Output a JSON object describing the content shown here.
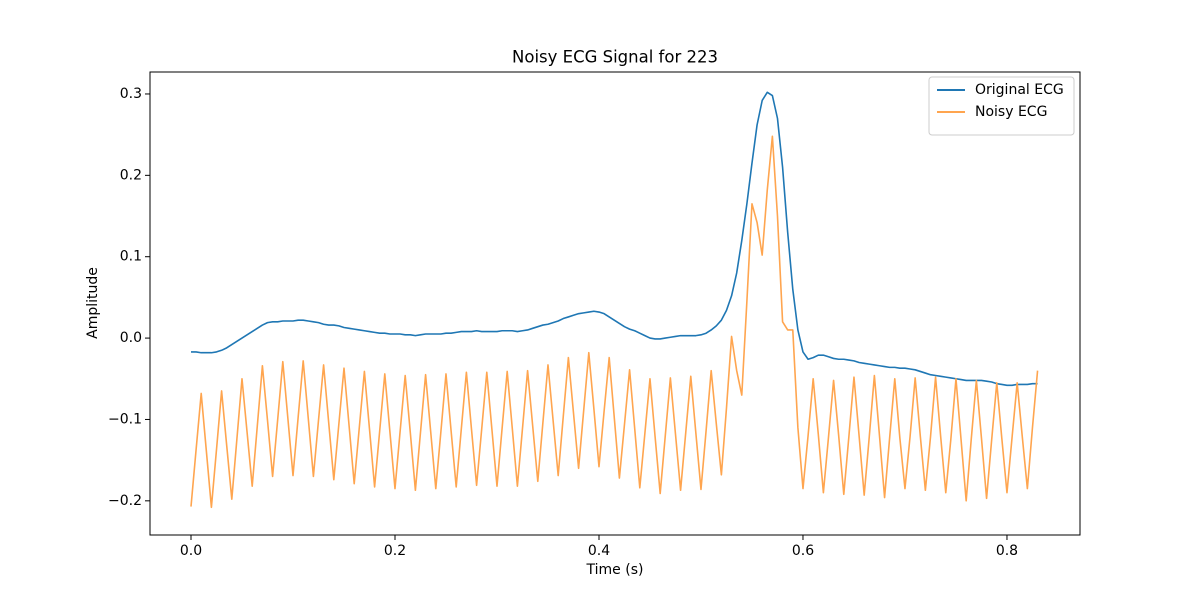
{
  "chart_data": {
    "type": "line",
    "title": "Noisy ECG Signal for 223",
    "x_label": "Time (s)",
    "y_label": "Amplitude",
    "x": [
      0,
      0.005,
      0.01,
      0.015,
      0.02,
      0.025,
      0.03,
      0.035,
      0.04,
      0.045,
      0.05,
      0.055,
      0.06,
      0.065,
      0.07,
      0.075,
      0.08,
      0.085,
      0.09,
      0.095,
      0.1,
      0.105,
      0.11,
      0.115,
      0.12,
      0.125,
      0.13,
      0.135,
      0.14,
      0.145,
      0.15,
      0.155,
      0.16,
      0.165,
      0.17,
      0.175,
      0.18,
      0.185,
      0.19,
      0.195,
      0.2,
      0.205,
      0.21,
      0.215,
      0.22,
      0.225,
      0.23,
      0.235,
      0.24,
      0.245,
      0.25,
      0.255,
      0.26,
      0.265,
      0.27,
      0.275,
      0.28,
      0.285,
      0.29,
      0.295,
      0.3,
      0.305,
      0.31,
      0.315,
      0.32,
      0.325,
      0.33,
      0.335,
      0.34,
      0.345,
      0.35,
      0.355,
      0.36,
      0.365,
      0.37,
      0.375,
      0.38,
      0.385,
      0.39,
      0.395,
      0.4,
      0.405,
      0.41,
      0.415,
      0.42,
      0.425,
      0.43,
      0.435,
      0.44,
      0.445,
      0.45,
      0.455,
      0.46,
      0.465,
      0.47,
      0.475,
      0.48,
      0.485,
      0.49,
      0.495,
      0.5,
      0.505,
      0.51,
      0.515,
      0.52,
      0.525,
      0.53,
      0.535,
      0.54,
      0.545,
      0.55,
      0.555,
      0.56,
      0.565,
      0.57,
      0.575,
      0.58,
      0.585,
      0.59,
      0.595,
      0.6,
      0.605,
      0.61,
      0.615,
      0.62,
      0.625,
      0.63,
      0.635,
      0.64,
      0.645,
      0.65,
      0.655,
      0.66,
      0.665,
      0.67,
      0.675,
      0.68,
      0.685,
      0.69,
      0.695,
      0.7,
      0.705,
      0.71,
      0.715,
      0.72,
      0.725,
      0.73,
      0.735,
      0.74,
      0.745,
      0.75,
      0.755,
      0.76,
      0.765,
      0.77,
      0.775,
      0.78,
      0.785,
      0.79,
      0.795,
      0.8,
      0.805,
      0.81,
      0.815,
      0.82,
      0.825,
      0.83
    ],
    "series": [
      {
        "name": "Original ECG",
        "color": "#1f77b4",
        "values": [
          -0.017,
          -0.017,
          -0.018,
          -0.018,
          -0.018,
          -0.017,
          -0.015,
          -0.012,
          -0.008,
          -0.004,
          0,
          0.004,
          0.008,
          0.012,
          0.016,
          0.019,
          0.02,
          0.02,
          0.021,
          0.021,
          0.021,
          0.022,
          0.022,
          0.021,
          0.02,
          0.019,
          0.017,
          0.016,
          0.016,
          0.015,
          0.013,
          0.012,
          0.011,
          0.01,
          0.009,
          0.008,
          0.007,
          0.006,
          0.006,
          0.005,
          0.005,
          0.005,
          0.004,
          0.004,
          0.003,
          0.004,
          0.005,
          0.005,
          0.005,
          0.005,
          0.006,
          0.006,
          0.007,
          0.008,
          0.008,
          0.008,
          0.009,
          0.008,
          0.008,
          0.008,
          0.008,
          0.009,
          0.009,
          0.009,
          0.008,
          0.009,
          0.01,
          0.012,
          0.014,
          0.016,
          0.017,
          0.019,
          0.021,
          0.024,
          0.026,
          0.028,
          0.03,
          0.031,
          0.032,
          0.033,
          0.032,
          0.03,
          0.026,
          0.022,
          0.018,
          0.014,
          0.011,
          0.009,
          0.006,
          0.003,
          0,
          -0.001,
          -0.001,
          0,
          0.001,
          0.002,
          0.003,
          0.003,
          0.003,
          0.003,
          0.004,
          0.006,
          0.01,
          0.015,
          0.022,
          0.034,
          0.052,
          0.08,
          0.12,
          0.165,
          0.215,
          0.262,
          0.292,
          0.302,
          0.298,
          0.27,
          0.21,
          0.13,
          0.06,
          0.01,
          -0.017,
          -0.026,
          -0.024,
          -0.021,
          -0.021,
          -0.023,
          -0.025,
          -0.026,
          -0.026,
          -0.027,
          -0.028,
          -0.03,
          -0.031,
          -0.032,
          -0.033,
          -0.034,
          -0.035,
          -0.036,
          -0.036,
          -0.037,
          -0.037,
          -0.038,
          -0.039,
          -0.041,
          -0.043,
          -0.045,
          -0.046,
          -0.047,
          -0.048,
          -0.049,
          -0.05,
          -0.051,
          -0.052,
          -0.052,
          -0.052,
          -0.052,
          -0.053,
          -0.054,
          -0.056,
          -0.057,
          -0.058,
          -0.058,
          -0.057,
          -0.057,
          -0.057,
          -0.056,
          -0.056
        ]
      },
      {
        "name": "Noisy ECG",
        "color": "#ffa54f",
        "values": [
          -0.207,
          -0.137,
          -0.068,
          -0.138,
          -0.208,
          -0.137,
          -0.065,
          -0.132,
          -0.198,
          -0.124,
          -0.05,
          -0.116,
          -0.182,
          -0.108,
          -0.034,
          -0.101,
          -0.17,
          -0.1,
          -0.029,
          -0.099,
          -0.169,
          -0.098,
          -0.028,
          -0.099,
          -0.17,
          -0.101,
          -0.033,
          -0.104,
          -0.174,
          -0.105,
          -0.037,
          -0.108,
          -0.179,
          -0.11,
          -0.041,
          -0.112,
          -0.183,
          -0.114,
          -0.044,
          -0.115,
          -0.185,
          -0.115,
          -0.046,
          -0.116,
          -0.187,
          -0.116,
          -0.045,
          -0.115,
          -0.185,
          -0.115,
          -0.044,
          -0.114,
          -0.183,
          -0.112,
          -0.042,
          -0.112,
          -0.181,
          -0.112,
          -0.042,
          -0.112,
          -0.182,
          -0.111,
          -0.041,
          -0.111,
          -0.182,
          -0.111,
          -0.04,
          -0.108,
          -0.176,
          -0.104,
          -0.033,
          -0.101,
          -0.169,
          -0.096,
          -0.024,
          -0.092,
          -0.16,
          -0.089,
          -0.018,
          -0.087,
          -0.158,
          -0.09,
          -0.024,
          -0.098,
          -0.172,
          -0.106,
          -0.039,
          -0.111,
          -0.184,
          -0.117,
          -0.05,
          -0.121,
          -0.191,
          -0.12,
          -0.049,
          -0.118,
          -0.187,
          -0.117,
          -0.047,
          -0.117,
          -0.186,
          -0.114,
          -0.04,
          -0.105,
          -0.168,
          -0.086,
          0.002,
          -0.04,
          -0.07,
          0.045,
          0.165,
          0.142,
          0.102,
          0.182,
          0.248,
          0.15,
          0.02,
          0.01,
          0.01,
          -0.11,
          -0.185,
          -0.12,
          -0.05,
          -0.118,
          -0.19,
          -0.122,
          -0.052,
          -0.12,
          -0.192,
          -0.121,
          -0.048,
          -0.12,
          -0.193,
          -0.121,
          -0.046,
          -0.12,
          -0.196,
          -0.122,
          -0.05,
          -0.123,
          -0.185,
          -0.121,
          -0.049,
          -0.12,
          -0.187,
          -0.122,
          -0.048,
          -0.121,
          -0.19,
          -0.124,
          -0.05,
          -0.125,
          -0.2,
          -0.124,
          -0.052,
          -0.123,
          -0.197,
          -0.125,
          -0.055,
          -0.124,
          -0.19,
          -0.122,
          -0.055,
          -0.121,
          -0.185,
          -0.11,
          -0.04
        ]
      }
    ],
    "xlim": [
      -0.0402,
      0.8716
    ],
    "xticks": [
      {
        "value": 0,
        "label": "0.0"
      },
      0.2,
      0.4,
      0.6,
      0.8
    ],
    "ylim": [
      -0.242,
      0.327
    ],
    "yticks": [
      {
        "value": -0.2,
        "label": "−0.2"
      },
      {
        "value": -0.1,
        "label": "−0.1"
      },
      {
        "value": 0,
        "label": "0.0"
      },
      0.1,
      0.2,
      0.3
    ],
    "legend": "upper right"
  }
}
